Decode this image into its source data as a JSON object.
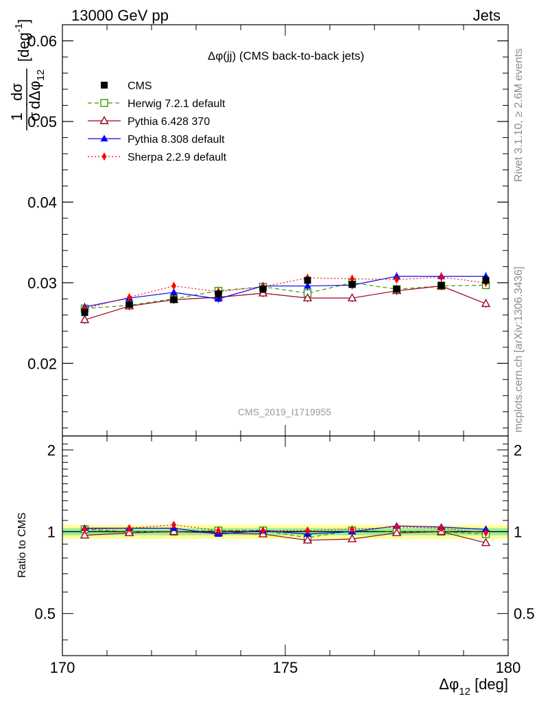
{
  "header": {
    "left": "13000 GeV pp",
    "right": "Jets"
  },
  "side_labels": {
    "rivet": "Rivet 3.1.10, ≥ 2.6M events",
    "mcplots": "mcplots.cern.ch [arXiv:1306.3436]"
  },
  "watermark": "CMS_2019_I1719955",
  "chart_data": [
    {
      "type": "line",
      "title": "Δφ(jj) (CMS back-to-back jets)",
      "ylabel": "1/σ dσ/dΔφ_12 [deg^-1]",
      "xlabel": "Δφ_12 [deg]",
      "xlim": [
        170,
        180
      ],
      "ylim": [
        0.011,
        0.062
      ],
      "x_ticks": [
        170,
        175,
        180
      ],
      "y_ticks": [
        0.02,
        0.03,
        0.04,
        0.05,
        0.06
      ],
      "legend_position": "top-left",
      "x": [
        170.5,
        171.5,
        172.5,
        173.5,
        174.5,
        175.5,
        176.5,
        177.5,
        178.5,
        179.5
      ],
      "series": [
        {
          "name": "CMS",
          "color": "#000000",
          "marker": "square-filled",
          "line": "none",
          "values": [
            0.0263,
            0.0273,
            0.0279,
            0.0286,
            0.0292,
            0.0303,
            0.0298,
            0.0292,
            0.0297,
            0.0303
          ]
        },
        {
          "name": "Herwig 7.2.1 default",
          "color": "#339900",
          "marker": "square-open",
          "line": "dashed",
          "values": [
            0.0268,
            0.0272,
            0.028,
            0.029,
            0.0295,
            0.0287,
            0.03,
            0.0292,
            0.0296,
            0.0297
          ]
        },
        {
          "name": "Pythia 6.428 370",
          "color": "#990022",
          "marker": "triangle-open",
          "line": "solid",
          "values": [
            0.0254,
            0.0271,
            0.0279,
            0.0282,
            0.0287,
            0.0281,
            0.0281,
            0.029,
            0.0296,
            0.0274
          ]
        },
        {
          "name": "Pythia 8.308 default",
          "color": "#0000ee",
          "marker": "triangle-filled",
          "line": "solid",
          "values": [
            0.027,
            0.0281,
            0.0288,
            0.028,
            0.0296,
            0.0296,
            0.0297,
            0.0308,
            0.0308,
            0.0308
          ]
        },
        {
          "name": "Sherpa 2.2.9 default",
          "color": "#ff0000",
          "marker": "diamond-filled",
          "line": "dotted",
          "values": [
            0.0268,
            0.0282,
            0.0296,
            0.0289,
            0.0295,
            0.0306,
            0.0305,
            0.0304,
            0.0307,
            0.03
          ]
        }
      ]
    },
    {
      "type": "line",
      "ylabel": "Ratio to CMS",
      "xlabel": "Δφ_12 [deg]",
      "xlim": [
        170,
        180
      ],
      "ylim": [
        0.35,
        2.25
      ],
      "y_ticks": [
        0.5,
        1,
        2
      ],
      "reference_line": 1,
      "uncertainty_band": {
        "inner": 0.03,
        "outer": 0.06
      },
      "x": [
        170.5,
        171.5,
        172.5,
        173.5,
        174.5,
        175.5,
        176.5,
        177.5,
        178.5,
        179.5
      ],
      "series": [
        {
          "name": "Herwig 7.2.1 default",
          "values": [
            1.02,
            1.0,
            1.0,
            1.01,
            1.01,
            0.95,
            1.01,
            1.0,
            1.0,
            0.98
          ]
        },
        {
          "name": "Pythia 6.428 370",
          "values": [
            0.97,
            0.99,
            1.0,
            0.99,
            0.98,
            0.93,
            0.94,
            0.99,
            1.0,
            0.91
          ]
        },
        {
          "name": "Pythia 8.308 default",
          "values": [
            1.03,
            1.03,
            1.03,
            0.98,
            1.01,
            0.98,
            1.0,
            1.05,
            1.04,
            1.02
          ]
        },
        {
          "name": "Sherpa 2.2.9 default",
          "values": [
            1.02,
            1.03,
            1.06,
            1.01,
            1.01,
            1.01,
            1.02,
            1.04,
            1.03,
            0.99
          ]
        }
      ]
    }
  ]
}
